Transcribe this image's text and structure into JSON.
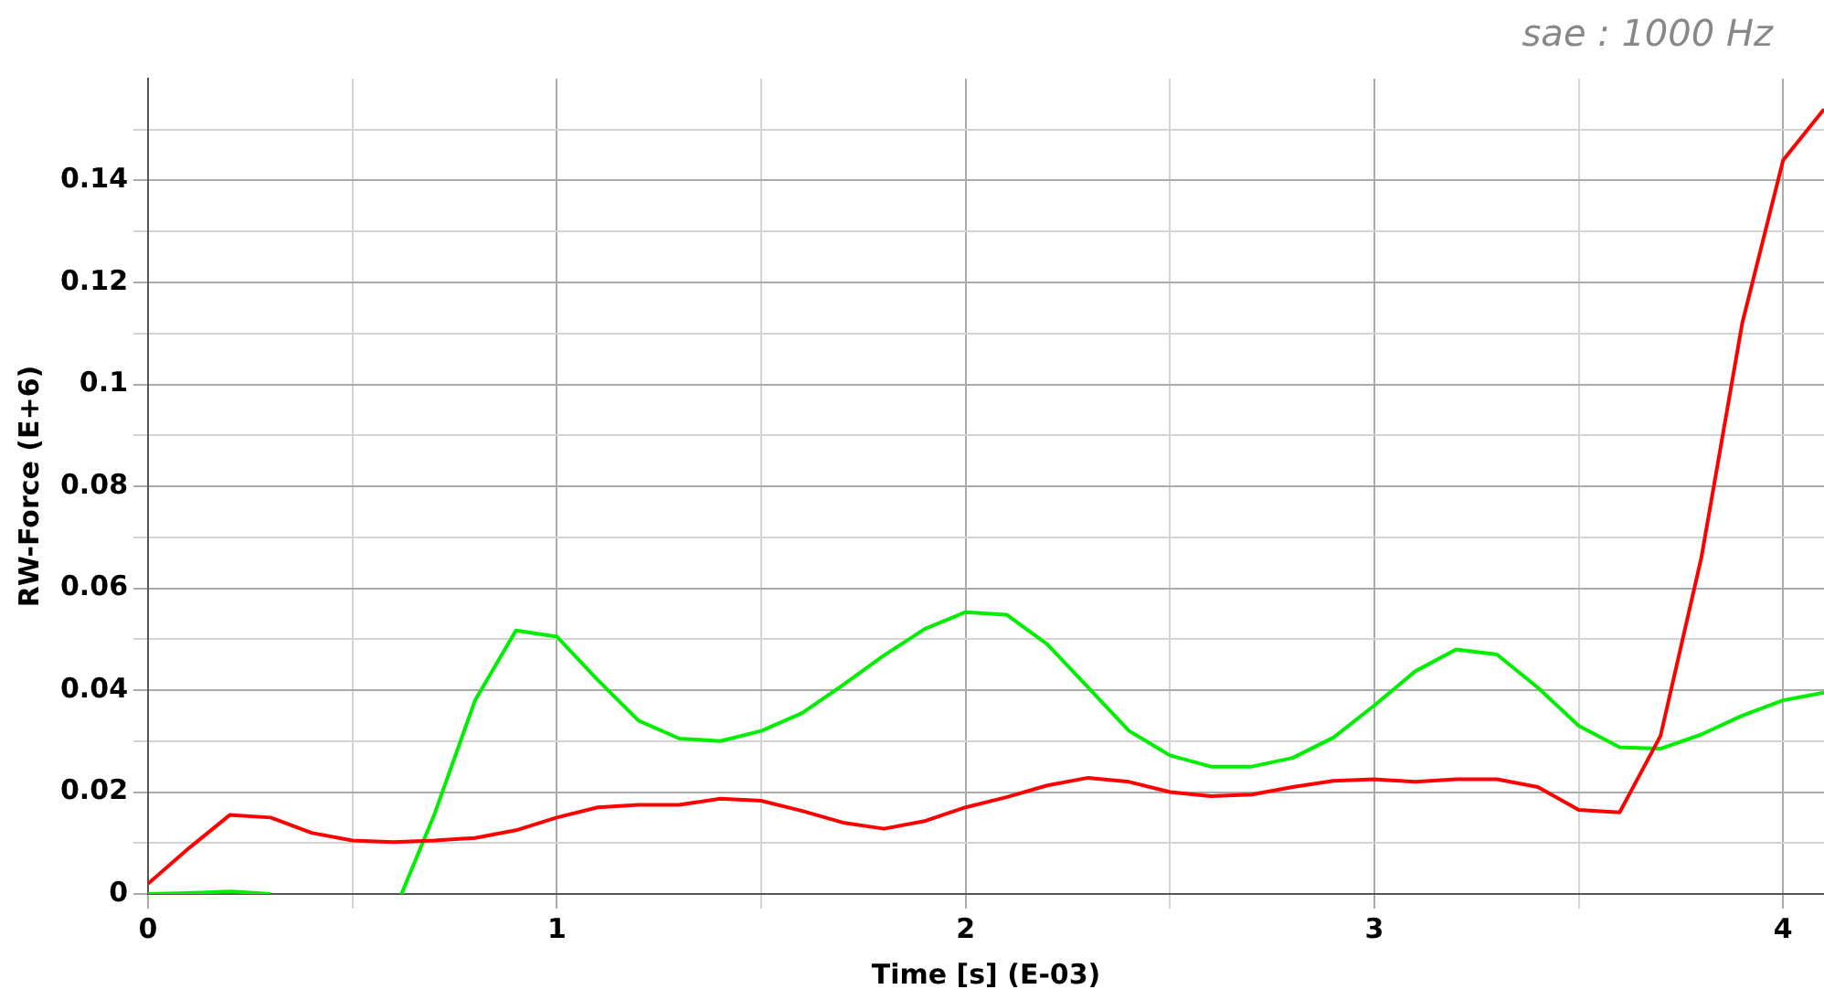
{
  "chart_data": {
    "type": "line",
    "xlabel": "Time [s] (E-03)",
    "ylabel": "RW-Force (E+6)",
    "annotations": [
      "sae : 1000 Hz"
    ],
    "xlim": [
      0,
      4.1
    ],
    "ylim": [
      0,
      0.16
    ],
    "xticks": [
      0,
      {
        "value": 0.5,
        "label": null
      },
      1,
      {
        "value": 1.5,
        "label": null
      },
      2,
      {
        "value": 2.5,
        "label": null
      },
      3,
      {
        "value": 3.5,
        "label": null
      },
      4
    ],
    "yticks": [
      0,
      {
        "value": 0.01,
        "label": null
      },
      0.02,
      {
        "value": 0.03,
        "label": null
      },
      0.04,
      {
        "value": 0.05,
        "label": null
      },
      0.06,
      {
        "value": 0.07,
        "label": null
      },
      0.08,
      {
        "value": 0.09,
        "label": null
      },
      0.1,
      {
        "value": 0.11,
        "label": null
      },
      0.12,
      {
        "value": 0.13,
        "label": null
      },
      0.14,
      {
        "value": 0.15,
        "label": null
      }
    ],
    "grid": true,
    "legend": false,
    "marker": "none",
    "line_style": "solid",
    "series": [
      {
        "color": "#ff0000",
        "x": [
          0,
          0.1,
          0.2,
          0.3,
          0.4,
          0.5,
          0.6,
          0.7,
          0.8,
          0.9,
          1.0,
          1.1,
          1.2,
          1.3,
          1.4,
          1.5,
          1.6,
          1.7,
          1.8,
          1.9,
          2.0,
          2.1,
          2.2,
          2.3,
          2.4,
          2.5,
          2.6,
          2.7,
          2.8,
          2.9,
          3.0,
          3.1,
          3.2,
          3.3,
          3.4,
          3.5,
          3.6,
          3.7,
          3.8,
          3.9,
          4.0,
          4.1
        ],
        "values": [
          0.002,
          0.009,
          0.0155,
          0.015,
          0.012,
          0.0105,
          0.0102,
          0.0105,
          0.011,
          0.0125,
          0.015,
          0.017,
          0.0175,
          0.0175,
          0.0187,
          0.0183,
          0.0163,
          0.014,
          0.0128,
          0.0143,
          0.017,
          0.019,
          0.0213,
          0.0228,
          0.022,
          0.02,
          0.0192,
          0.0195,
          0.021,
          0.0222,
          0.0225,
          0.022,
          0.0225,
          0.0225,
          0.021,
          0.0165,
          0.016,
          0.031,
          0.066,
          0.112,
          0.144,
          0.154
        ]
      },
      {
        "color": "#00ee00",
        "x": [
          0,
          0.1,
          0.2,
          0.3,
          0.4,
          0.5,
          0.62,
          0.7,
          0.8,
          0.9,
          1.0,
          1.1,
          1.2,
          1.3,
          1.4,
          1.5,
          1.6,
          1.7,
          1.8,
          1.9,
          2.0,
          2.1,
          2.2,
          2.3,
          2.4,
          2.5,
          2.6,
          2.7,
          2.8,
          2.9,
          3.0,
          3.1,
          3.2,
          3.3,
          3.4,
          3.5,
          3.6,
          3.7,
          3.8,
          3.9,
          4.0,
          4.1
        ],
        "values": [
          0,
          0.0002,
          0.0005,
          0,
          null,
          null,
          0,
          0.0155,
          0.038,
          0.0517,
          0.0505,
          0.042,
          0.034,
          0.0305,
          0.03,
          0.032,
          0.0355,
          0.041,
          0.0468,
          0.052,
          0.0553,
          0.0548,
          0.049,
          0.0405,
          0.032,
          0.0272,
          0.025,
          0.025,
          0.0267,
          0.0307,
          0.037,
          0.0437,
          0.048,
          0.047,
          0.0405,
          0.033,
          0.0288,
          0.0285,
          0.0313,
          0.035,
          0.038,
          0.0395
        ]
      }
    ]
  }
}
